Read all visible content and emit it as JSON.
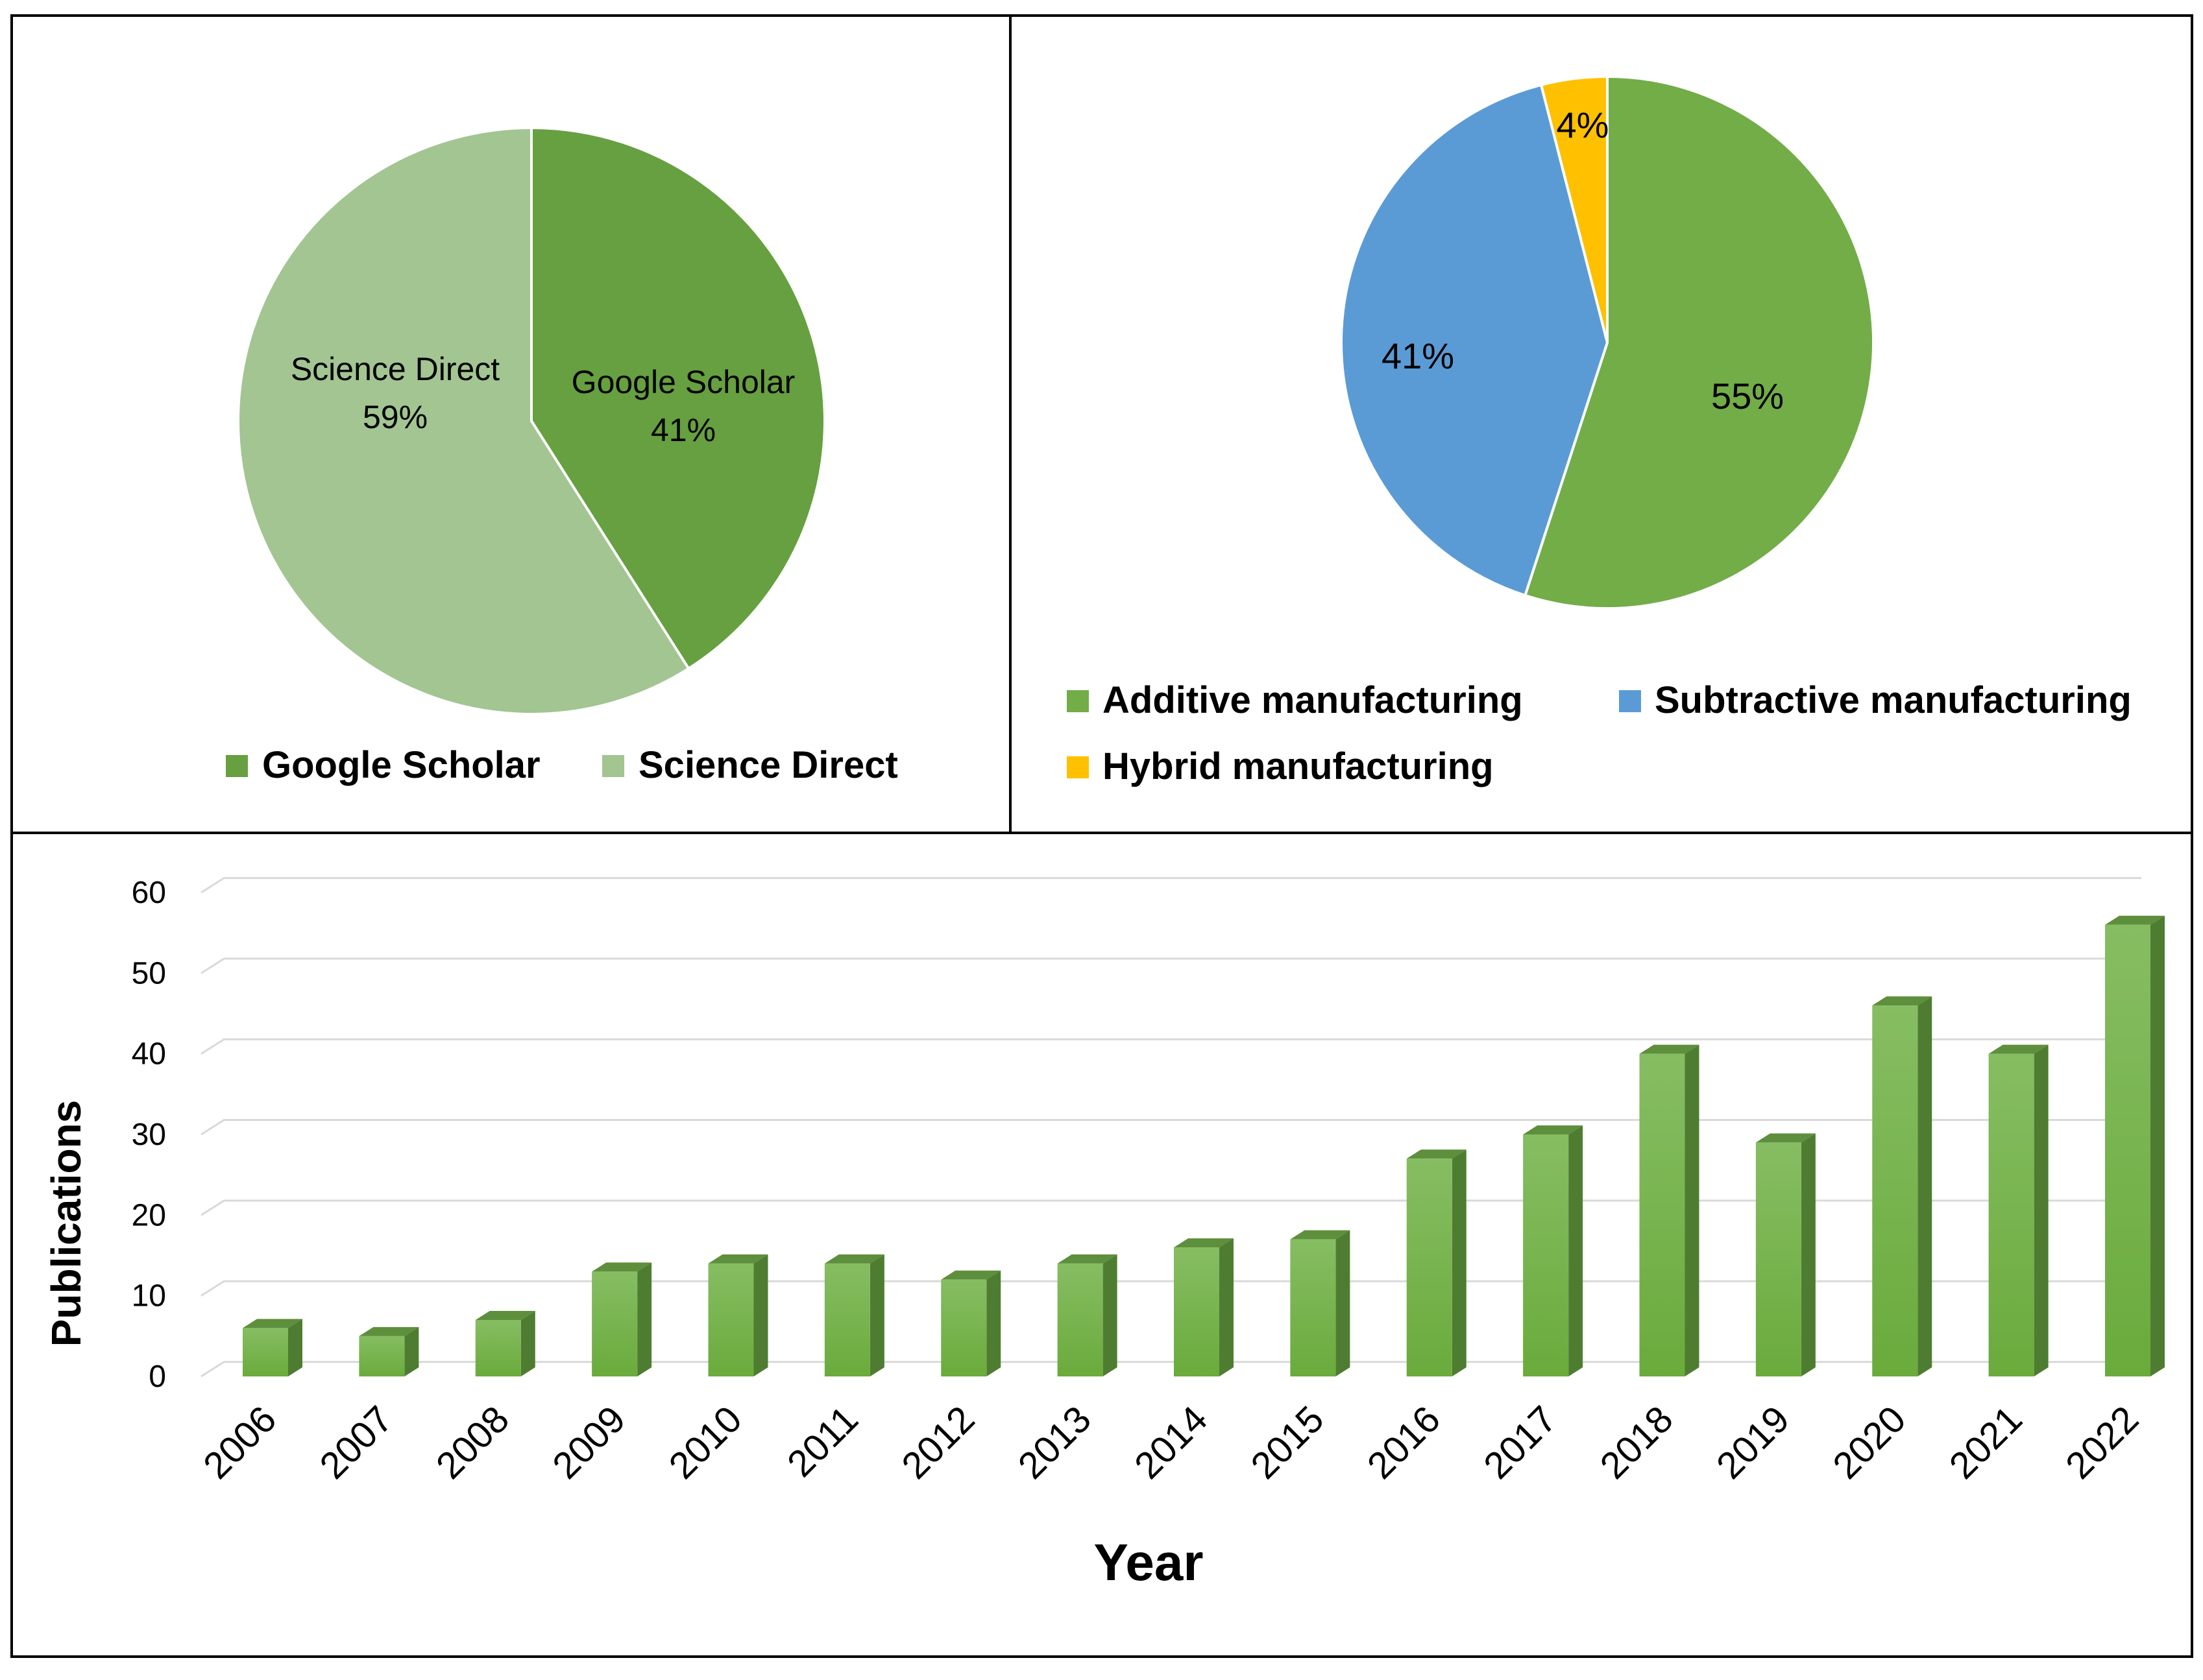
{
  "colors": {
    "google_scholar": "#66A040",
    "science_direct": "#A2C592",
    "additive": "#72AD48",
    "subtractive": "#5B9BD5",
    "hybrid": "#FFC000",
    "bar_front_top": "#86BD62",
    "bar_front_bottom": "#6AAB3C",
    "bar_side": "#4E7D31",
    "bar_top": "#5E8F3C",
    "grid": "#D9D9D9"
  },
  "chart_data": [
    {
      "type": "pie",
      "slices": [
        {
          "label": "Google Scholar",
          "value": 41,
          "value_label": "41%"
        },
        {
          "label": "Science Direct",
          "value": 59,
          "value_label": "59%"
        }
      ],
      "legend": [
        "Google Scholar",
        "Science Direct"
      ],
      "legend_position": "bottom"
    },
    {
      "type": "pie",
      "slices": [
        {
          "label": "Additive manufacturing",
          "value": 55,
          "value_label": "55%"
        },
        {
          "label": "Subtractive manufacturing",
          "value": 41,
          "value_label": "41%"
        },
        {
          "label": "Hybrid manufacturing",
          "value": 4,
          "value_label": "4%"
        }
      ],
      "legend": [
        "Additive manufacturing",
        "Subtractive manufacturing",
        "Hybrid manufacturing"
      ],
      "legend_position": "bottom"
    },
    {
      "type": "bar",
      "categories": [
        "2006",
        "2007",
        "2008",
        "2009",
        "2010",
        "2011",
        "2012",
        "2013",
        "2014",
        "2015",
        "2016",
        "2017",
        "2018",
        "2019",
        "2020",
        "2021",
        "2022"
      ],
      "values": [
        6,
        5,
        7,
        13,
        14,
        14,
        12,
        14,
        16,
        17,
        27,
        30,
        40,
        29,
        46,
        40,
        56
      ],
      "xlabel": "Year",
      "ylabel": "Publications",
      "ylim": [
        0,
        60
      ],
      "yticks": [
        "0",
        "10",
        "20",
        "30",
        "40",
        "50",
        "60"
      ],
      "grid": true
    }
  ]
}
